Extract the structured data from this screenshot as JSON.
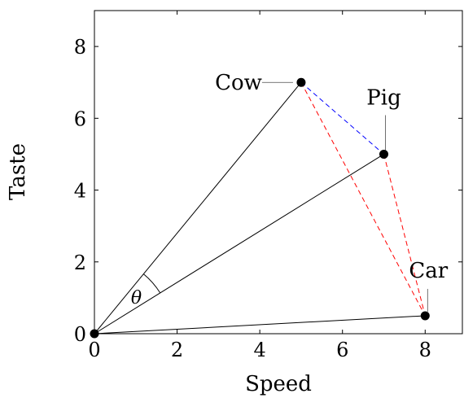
{
  "chart_data": {
    "type": "scatter",
    "xlabel": "Speed",
    "ylabel": "Taste",
    "xlim": [
      0,
      8.9
    ],
    "ylim": [
      0,
      9
    ],
    "xticks": [
      "0",
      "2",
      "4",
      "6",
      "8"
    ],
    "yticks": [
      "0",
      "2",
      "4",
      "6",
      "8"
    ],
    "grid": false,
    "origin": {
      "x": 0,
      "y": 0
    },
    "points": [
      {
        "label": "Cow",
        "x": 5,
        "y": 7
      },
      {
        "label": "Pig",
        "x": 7,
        "y": 5
      },
      {
        "label": "Car",
        "x": 8,
        "y": 0.5
      }
    ],
    "vectors_from_origin": [
      "Cow",
      "Pig",
      "Car"
    ],
    "dashed_segments": [
      {
        "from": "Cow",
        "to": "Pig",
        "color": "#0000ff"
      },
      {
        "from": "Cow",
        "to": "Car",
        "color": "#ff0000"
      },
      {
        "from": "Pig",
        "to": "Car",
        "color": "#ff0000"
      }
    ],
    "angle": {
      "label": "θ",
      "between": [
        "Cow",
        "Pig"
      ]
    }
  }
}
